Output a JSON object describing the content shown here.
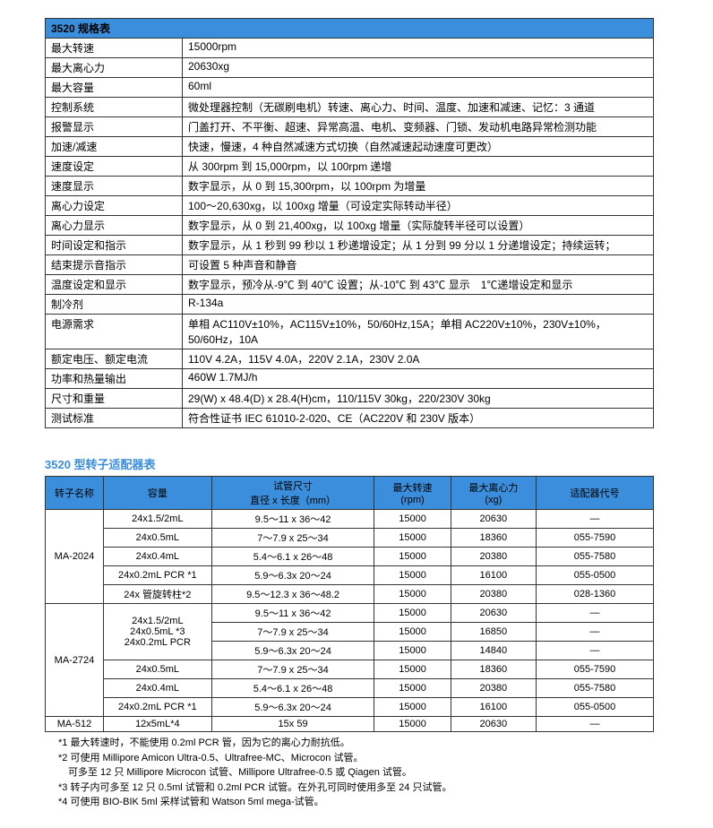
{
  "spec": {
    "header": "3520 规格表",
    "rows": [
      {
        "label": "最大转速",
        "value": "15000rpm"
      },
      {
        "label": "最大离心力",
        "value": "20630xg"
      },
      {
        "label": "最大容量",
        "value": "60ml"
      },
      {
        "label": "控制系统",
        "value": "微处理器控制（无碳刷电机）转速、离心力、时间、温度、加速和减速、记忆：3 通道"
      },
      {
        "label": "报警显示",
        "value": "门盖打开、不平衡、超速、异常高温、电机、变频器、门锁、发动机电路异常检测功能"
      },
      {
        "label": "加速/减速",
        "value": "快速，慢速，4 种自然减速方式切换（自然减速起动速度可更改）"
      },
      {
        "label": "速度设定",
        "value": "从 300rpm 到 15,000rpm，以 100rpm 递增"
      },
      {
        "label": "速度显示",
        "value": "数字显示，从 0 到 15,300rpm，以 100rpm 为增量"
      },
      {
        "label": "离心力设定",
        "value": "100～20,630xg，以 100xg 增量（可设定实际转动半径）"
      },
      {
        "label": "离心力显示",
        "value": "数字显示，从 0 到 21,400xg，以 100xg 增量（实际旋转半径可以设置）"
      },
      {
        "label": "时间设定和指示",
        "value": "数字显示，从 1 秒到 99 秒以 1 秒递增设定；从 1 分到 99 分以 1 分递增设定；持续运转；"
      },
      {
        "label": "结束提示音指示",
        "value": "可设置 5 种声音和静音"
      },
      {
        "label": "温度设定和显示",
        "value": "数字显示，预冷从-9℃ 到 40℃ 设置；从-10℃ 到 43℃ 显示　1℃递增设定和显示"
      },
      {
        "label": "制冷剂",
        "value": "R-134a"
      },
      {
        "label": "电源需求",
        "value": "单相 AC110V±10%，AC115V±10%，50/60Hz,15A；单相 AC220V±10%，230V±10%，50/60Hz，10A"
      },
      {
        "label": "额定电压、额定电流",
        "value": "110V 4.2A，115V 4.0A，220V 2.1A，230V 2.0A"
      },
      {
        "label": "功率和热量输出",
        "value": "460W 1.7MJ/h"
      },
      {
        "label": "尺寸和重量",
        "value": "29(W) x 48.4(D) x 28.4(H)cm，110/115V 30kg，220/230V 30kg"
      },
      {
        "label": "测试标准",
        "value": "符合性证书 IEC 61010-2-020、CE（AC220V 和 230V 版本）"
      }
    ]
  },
  "rotor": {
    "title": "3520 型转子适配器表",
    "headers": {
      "name": "转子名称",
      "cap": "容量",
      "dim": "试管尺寸",
      "dim2": "直径 x 长度（mm）",
      "rpm": "最大转速",
      "rpm2": "(rpm)",
      "xg": "最大离心力",
      "xg2": "(xg)",
      "adapter": "适配器代号"
    },
    "groups": [
      {
        "name": "MA-2024",
        "rowspan": 5,
        "rows": [
          {
            "cap": "24x1.5/2mL",
            "dim": "9.5～11 x 36～42",
            "rpm": "15000",
            "xg": "20630",
            "adapter": "—"
          },
          {
            "cap": "24x0.5mL",
            "dim": "7～7.9 x 25～34",
            "rpm": "15000",
            "xg": "18360",
            "adapter": "055-7590"
          },
          {
            "cap": "24x0.4mL",
            "dim": "5.4～6.1 x 26～48",
            "rpm": "15000",
            "xg": "20380",
            "adapter": "055-7580"
          },
          {
            "cap": "24x0.2mL PCR *1",
            "dim": "5.9～6.3x 20～24",
            "rpm": "15000",
            "xg": "16100",
            "adapter": "055-0500"
          },
          {
            "cap": "24x 管旋转柱*2",
            "dim": "9.5～12.3 x 36～48.2",
            "rpm": "15000",
            "xg": "20380",
            "adapter": "028-1360"
          }
        ]
      },
      {
        "name": "MA-2724",
        "rowspan": 6,
        "rows": [
          {
            "capSpan": 3,
            "cap": "24x1.5/2mL\n24x0.5mL *3\n24x0.2mL PCR",
            "dim": "9.5～11 x 36～42",
            "rpm": "15000",
            "xg": "20630",
            "adapter": "—"
          },
          {
            "dim": "7～7.9 x 25～34",
            "rpm": "15000",
            "xg": "16850",
            "adapter": "—"
          },
          {
            "dim": "5.9～6.3x 20～24",
            "rpm": "15000",
            "xg": "14840",
            "adapter": "—"
          },
          {
            "cap": "24x0.5mL",
            "dim": "7～7.9 x 25～34",
            "rpm": "15000",
            "xg": "18360",
            "adapter": "055-7590"
          },
          {
            "cap": "24x0.4mL",
            "dim": "5.4～6.1 x 26～48",
            "rpm": "15000",
            "xg": "20380",
            "adapter": "055-7580"
          },
          {
            "cap": "24x0.2mL PCR *1",
            "dim": "5.9～6.3x 20～24",
            "rpm": "15000",
            "xg": "16100",
            "adapter": "055-0500"
          }
        ]
      },
      {
        "name": "MA-512",
        "rowspan": 1,
        "rows": [
          {
            "cap": "12x5mL*4",
            "dim": "15x 59",
            "rpm": "15000",
            "xg": "20630",
            "adapter": "—"
          }
        ]
      }
    ]
  },
  "notes": [
    "*1 最大转速时，不能使用 0.2ml PCR 管，因为它的离心力耐抗低。",
    "*2 可使用 Millipore Amicon Ultra-0.5、Ultrafree-MC、Microcon 试管。",
    "　可多至 12 只 Millipore Microcon 试管、Millipore Ultrafree-0.5 或 Qiagen 试管。",
    "*3 转子内可多至 12 只 0.5ml 试管和 0.2ml PCR 试管。在外孔可同时使用多至 24 只试管。",
    "*4 可使用 BIO-BIK 5ml 采样试管和 Watson 5ml mega-试管。"
  ]
}
